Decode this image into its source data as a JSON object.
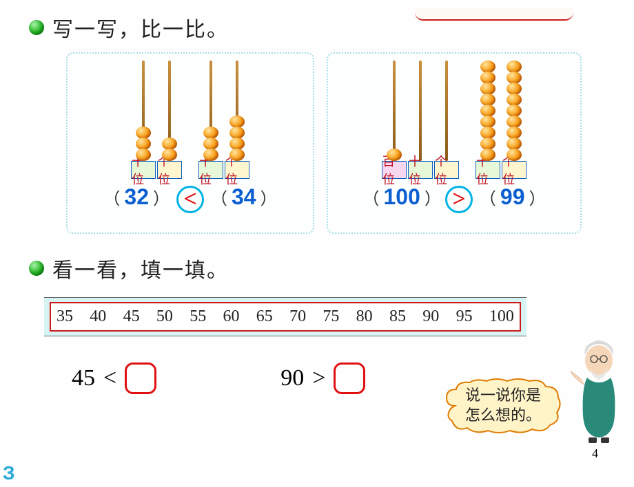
{
  "section1": {
    "title": "写一写，比一比。",
    "panel_left": {
      "abacus1": {
        "tens": 3,
        "ones": 2,
        "labels": [
          "十位",
          "个位"
        ]
      },
      "abacus2": {
        "tens": 3,
        "ones": 4,
        "labels": [
          "十位",
          "个位"
        ]
      },
      "value1": "32",
      "value2": "34",
      "comparison": "<"
    },
    "panel_right": {
      "abacus1": {
        "hundreds": 1,
        "tens": 0,
        "ones": 0,
        "labels": [
          "百位",
          "十位",
          "个位"
        ]
      },
      "abacus2": {
        "tens": 9,
        "ones": 9,
        "labels": [
          "十位",
          "个位"
        ]
      },
      "value1": "100",
      "value2": "99",
      "comparison": ">"
    }
  },
  "section2": {
    "title": "看一看，填一填。",
    "ruler": [
      "35",
      "40",
      "45",
      "50",
      "55",
      "60",
      "65",
      "70",
      "75",
      "80",
      "85",
      "90",
      "95",
      "100"
    ],
    "fill1": {
      "lhs": "45",
      "op": "<"
    },
    "fill2": {
      "lhs": "90",
      "op": ">"
    },
    "speech": {
      "line1": "说一说你是",
      "line2": "怎么想的。"
    }
  },
  "page_number": "4",
  "colors": {
    "answer_blue": "#0b5fd1",
    "answer_red": "#e20f0f",
    "circle_blue": "#00b3e6",
    "ruler_border": "#cc1a1a",
    "bead_gradient": [
      "#ffe5a0",
      "#f9a11b",
      "#d65a00"
    ],
    "bubble_border": "#e07b00",
    "bubble_fill": "#fff3c8"
  }
}
